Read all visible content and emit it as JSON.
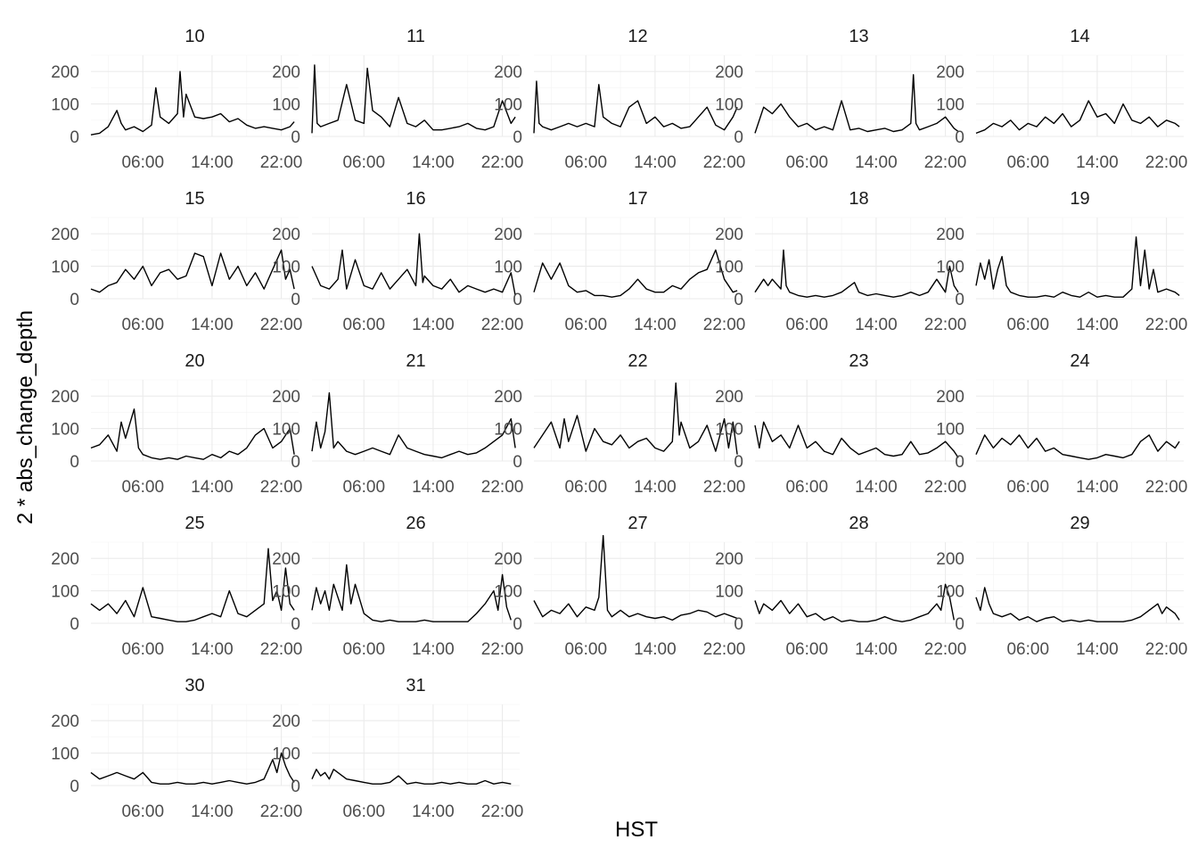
{
  "chart_data": {
    "type": "line",
    "facet_layout": "wrap",
    "ncol": 5,
    "xlabel": "HST",
    "ylabel": "2 * abs_change_depth",
    "x_unit": "hour of day (HST)",
    "xlim": [
      0,
      24
    ],
    "x_ticks": [
      6,
      14,
      22
    ],
    "x_tick_labels": [
      "06:00",
      "14:00",
      "22:00"
    ],
    "ylim": [
      0,
      250
    ],
    "y_ticks": [
      0,
      100,
      200
    ],
    "y_tick_labels": [
      "0",
      "100",
      "200"
    ],
    "grid": true,
    "line_color": "#000000",
    "panels": [
      {
        "label": "10",
        "x": [
          0,
          1,
          2,
          3,
          3.5,
          4,
          5,
          6,
          7,
          7.5,
          8,
          9,
          10,
          10.3,
          10.7,
          11,
          12,
          13,
          14,
          15,
          16,
          17,
          18,
          19,
          20,
          21,
          22,
          23,
          23.5
        ],
        "y": [
          5,
          10,
          30,
          80,
          40,
          20,
          30,
          15,
          35,
          150,
          60,
          40,
          70,
          200,
          60,
          130,
          60,
          55,
          60,
          70,
          45,
          55,
          35,
          25,
          30,
          25,
          20,
          30,
          45
        ]
      },
      {
        "label": "11",
        "x": [
          0,
          0.3,
          0.6,
          1,
          2,
          3,
          4,
          5,
          6,
          6.4,
          7,
          8,
          9,
          10,
          11,
          12,
          13,
          14,
          15,
          16,
          17,
          18,
          19,
          20,
          21,
          22,
          23,
          23.5
        ],
        "y": [
          10,
          220,
          40,
          30,
          40,
          50,
          160,
          50,
          40,
          210,
          80,
          60,
          30,
          120,
          40,
          30,
          50,
          20,
          20,
          25,
          30,
          40,
          25,
          20,
          30,
          110,
          40,
          60
        ]
      },
      {
        "label": "12",
        "x": [
          0,
          0.3,
          0.6,
          1,
          2,
          3,
          4,
          5,
          6,
          7,
          7.5,
          8,
          9,
          10,
          11,
          12,
          13,
          14,
          15,
          16,
          17,
          18,
          19,
          20,
          21,
          22,
          23,
          23.5
        ],
        "y": [
          10,
          170,
          40,
          30,
          20,
          30,
          40,
          30,
          40,
          30,
          160,
          60,
          40,
          30,
          90,
          110,
          40,
          60,
          30,
          40,
          25,
          30,
          60,
          90,
          35,
          20,
          60,
          90
        ]
      },
      {
        "label": "13",
        "x": [
          0,
          1,
          2,
          3,
          4,
          5,
          6,
          7,
          8,
          9,
          10,
          11,
          12,
          13,
          14,
          15,
          16,
          17,
          18,
          18.3,
          18.6,
          19,
          20,
          21,
          22,
          23,
          23.5
        ],
        "y": [
          10,
          90,
          70,
          100,
          60,
          30,
          40,
          20,
          30,
          20,
          110,
          20,
          25,
          15,
          20,
          25,
          15,
          20,
          40,
          190,
          40,
          20,
          30,
          40,
          60,
          25,
          15
        ]
      },
      {
        "label": "14",
        "x": [
          0,
          1,
          2,
          3,
          4,
          5,
          6,
          7,
          8,
          9,
          10,
          11,
          12,
          13,
          14,
          15,
          16,
          17,
          18,
          19,
          20,
          21,
          22,
          23,
          23.5
        ],
        "y": [
          10,
          20,
          40,
          30,
          50,
          20,
          40,
          30,
          60,
          40,
          70,
          30,
          50,
          110,
          60,
          70,
          40,
          100,
          50,
          40,
          60,
          30,
          50,
          40,
          30
        ]
      },
      {
        "label": "15",
        "x": [
          0,
          1,
          2,
          3,
          4,
          5,
          6,
          7,
          8,
          9,
          10,
          11,
          12,
          13,
          14,
          15,
          16,
          17,
          18,
          19,
          20,
          21,
          22,
          22.5,
          23,
          23.5
        ],
        "y": [
          30,
          20,
          40,
          50,
          90,
          60,
          100,
          40,
          80,
          90,
          60,
          70,
          140,
          130,
          40,
          140,
          60,
          100,
          40,
          80,
          30,
          90,
          150,
          60,
          90,
          30
        ]
      },
      {
        "label": "16",
        "x": [
          0,
          1,
          2,
          3,
          3.5,
          4,
          5,
          6,
          7,
          8,
          9,
          10,
          11,
          12,
          12.4,
          12.8,
          13,
          14,
          15,
          16,
          17,
          18,
          19,
          20,
          21,
          22,
          23,
          23.5
        ],
        "y": [
          100,
          40,
          30,
          60,
          150,
          30,
          120,
          40,
          30,
          80,
          30,
          60,
          90,
          40,
          200,
          50,
          70,
          40,
          30,
          60,
          20,
          40,
          30,
          20,
          30,
          20,
          80,
          10
        ]
      },
      {
        "label": "17",
        "x": [
          0,
          1,
          2,
          3,
          4,
          5,
          6,
          7,
          8,
          9,
          10,
          11,
          12,
          13,
          14,
          15,
          16,
          17,
          18,
          19,
          20,
          21,
          22,
          23,
          23.5
        ],
        "y": [
          20,
          110,
          60,
          110,
          40,
          20,
          25,
          10,
          10,
          5,
          10,
          30,
          60,
          30,
          20,
          20,
          40,
          30,
          60,
          80,
          90,
          150,
          60,
          20,
          25
        ]
      },
      {
        "label": "18",
        "x": [
          0,
          1,
          1.5,
          2,
          3,
          3.3,
          3.6,
          4,
          5,
          6,
          7,
          8,
          9,
          10,
          11,
          11.5,
          12,
          13,
          14,
          15,
          16,
          17,
          18,
          19,
          20,
          21,
          22,
          22.5,
          23,
          23.5
        ],
        "y": [
          20,
          60,
          40,
          60,
          30,
          150,
          40,
          20,
          10,
          5,
          10,
          5,
          10,
          20,
          40,
          50,
          20,
          10,
          15,
          10,
          5,
          10,
          20,
          10,
          20,
          60,
          20,
          100,
          40,
          20
        ]
      },
      {
        "label": "19",
        "x": [
          0,
          0.5,
          1,
          1.5,
          2,
          2.5,
          3,
          3.5,
          4,
          5,
          6,
          7,
          8,
          9,
          10,
          11,
          12,
          13,
          14,
          15,
          16,
          17,
          18,
          18.5,
          19,
          19.5,
          20,
          20.5,
          21,
          22,
          23,
          23.5
        ],
        "y": [
          40,
          110,
          60,
          120,
          30,
          90,
          130,
          40,
          20,
          10,
          5,
          5,
          10,
          5,
          20,
          10,
          5,
          20,
          5,
          10,
          5,
          5,
          30,
          190,
          40,
          150,
          30,
          90,
          20,
          30,
          20,
          10
        ]
      },
      {
        "label": "20",
        "x": [
          0,
          1,
          2,
          3,
          3.5,
          4,
          5,
          5.5,
          6,
          7,
          8,
          9,
          10,
          11,
          12,
          13,
          14,
          15,
          16,
          17,
          18,
          19,
          20,
          21,
          22,
          23,
          23.5
        ],
        "y": [
          40,
          50,
          80,
          30,
          120,
          70,
          160,
          40,
          20,
          10,
          5,
          10,
          5,
          15,
          10,
          5,
          20,
          10,
          30,
          20,
          40,
          80,
          100,
          40,
          60,
          100,
          20
        ]
      },
      {
        "label": "21",
        "x": [
          0,
          0.5,
          1,
          1.5,
          2,
          2.5,
          3,
          4,
          5,
          6,
          7,
          8,
          9,
          10,
          11,
          12,
          13,
          14,
          15,
          16,
          17,
          18,
          19,
          20,
          21,
          22,
          23,
          23.5
        ],
        "y": [
          30,
          120,
          40,
          90,
          210,
          40,
          60,
          30,
          20,
          30,
          40,
          30,
          20,
          80,
          40,
          30,
          20,
          15,
          10,
          20,
          30,
          20,
          25,
          40,
          60,
          80,
          130,
          40
        ]
      },
      {
        "label": "22",
        "x": [
          0,
          1,
          2,
          3,
          3.5,
          4,
          5,
          6,
          7,
          8,
          9,
          10,
          11,
          12,
          13,
          14,
          15,
          16,
          16.4,
          16.8,
          17,
          18,
          19,
          20,
          21,
          22,
          22.5,
          23,
          23.5
        ],
        "y": [
          40,
          80,
          120,
          40,
          130,
          60,
          140,
          30,
          100,
          60,
          50,
          80,
          40,
          60,
          70,
          40,
          30,
          60,
          240,
          80,
          120,
          40,
          60,
          110,
          30,
          130,
          40,
          120,
          20
        ]
      },
      {
        "label": "23",
        "x": [
          0,
          0.5,
          1,
          2,
          3,
          4,
          5,
          6,
          7,
          8,
          9,
          10,
          11,
          12,
          13,
          14,
          15,
          16,
          17,
          18,
          19,
          20,
          21,
          22,
          23,
          23.5
        ],
        "y": [
          110,
          40,
          120,
          60,
          80,
          40,
          110,
          40,
          60,
          30,
          20,
          70,
          40,
          20,
          30,
          40,
          20,
          15,
          20,
          60,
          20,
          25,
          40,
          60,
          30,
          10
        ]
      },
      {
        "label": "24",
        "x": [
          0,
          1,
          2,
          3,
          4,
          5,
          6,
          7,
          8,
          9,
          10,
          11,
          12,
          13,
          14,
          15,
          16,
          17,
          18,
          19,
          20,
          21,
          22,
          23,
          23.5
        ],
        "y": [
          20,
          80,
          40,
          70,
          50,
          80,
          40,
          70,
          30,
          40,
          20,
          15,
          10,
          5,
          10,
          20,
          15,
          10,
          20,
          60,
          80,
          30,
          60,
          40,
          60
        ]
      },
      {
        "label": "25",
        "x": [
          0,
          1,
          2,
          3,
          4,
          5,
          6,
          7,
          8,
          9,
          10,
          11,
          12,
          13,
          14,
          15,
          16,
          17,
          18,
          19,
          20,
          20.5,
          21,
          21.5,
          22,
          22.5,
          23,
          23.5
        ],
        "y": [
          60,
          40,
          60,
          30,
          70,
          20,
          110,
          20,
          15,
          10,
          5,
          5,
          10,
          20,
          30,
          20,
          100,
          30,
          20,
          40,
          60,
          230,
          70,
          100,
          40,
          170,
          60,
          40
        ]
      },
      {
        "label": "26",
        "x": [
          0,
          0.5,
          1,
          1.5,
          2,
          2.5,
          3,
          3.5,
          4,
          4.5,
          5,
          6,
          7,
          8,
          9,
          10,
          11,
          12,
          13,
          14,
          15,
          16,
          17,
          18,
          19,
          20,
          21,
          21.5,
          22,
          22.5,
          23
        ],
        "y": [
          40,
          110,
          60,
          100,
          40,
          120,
          80,
          40,
          180,
          60,
          120,
          30,
          10,
          5,
          10,
          5,
          5,
          5,
          10,
          5,
          5,
          5,
          5,
          5,
          30,
          60,
          100,
          40,
          150,
          50,
          10
        ]
      },
      {
        "label": "27",
        "x": [
          0,
          1,
          2,
          3,
          4,
          5,
          6,
          7,
          7.5,
          8,
          8.5,
          9,
          10,
          11,
          12,
          13,
          14,
          15,
          16,
          17,
          18,
          19,
          20,
          21,
          22,
          23,
          23.5
        ],
        "y": [
          70,
          20,
          40,
          30,
          60,
          20,
          50,
          40,
          80,
          270,
          40,
          20,
          40,
          20,
          30,
          20,
          15,
          20,
          10,
          25,
          30,
          40,
          35,
          20,
          30,
          20,
          15
        ]
      },
      {
        "label": "28",
        "x": [
          0,
          0.5,
          1,
          2,
          3,
          4,
          5,
          6,
          7,
          8,
          9,
          10,
          11,
          12,
          13,
          14,
          15,
          16,
          17,
          18,
          19,
          20,
          21,
          21.5,
          22,
          22.5,
          23
        ],
        "y": [
          70,
          30,
          60,
          40,
          70,
          30,
          60,
          20,
          30,
          10,
          20,
          5,
          10,
          5,
          5,
          10,
          20,
          10,
          5,
          10,
          20,
          30,
          60,
          40,
          120,
          80,
          10
        ]
      },
      {
        "label": "29",
        "x": [
          0,
          0.5,
          1,
          1.5,
          2,
          3,
          4,
          5,
          6,
          7,
          8,
          9,
          10,
          11,
          12,
          13,
          14,
          15,
          16,
          17,
          18,
          19,
          20,
          21,
          21.5,
          22,
          23,
          23.5
        ],
        "y": [
          80,
          40,
          110,
          60,
          30,
          20,
          30,
          10,
          20,
          5,
          15,
          20,
          5,
          10,
          5,
          10,
          5,
          5,
          5,
          5,
          10,
          20,
          40,
          60,
          30,
          50,
          30,
          10
        ]
      },
      {
        "label": "30",
        "x": [
          0,
          1,
          2,
          3,
          4,
          5,
          6,
          7,
          8,
          9,
          10,
          11,
          12,
          13,
          14,
          15,
          16,
          17,
          18,
          19,
          20,
          21,
          21.5,
          22,
          22.5,
          23,
          23.5
        ],
        "y": [
          40,
          20,
          30,
          40,
          30,
          20,
          40,
          10,
          5,
          5,
          10,
          5,
          5,
          10,
          5,
          10,
          15,
          10,
          5,
          10,
          20,
          80,
          40,
          100,
          60,
          30,
          10
        ]
      },
      {
        "label": "31",
        "x": [
          0,
          0.5,
          1,
          1.5,
          2,
          2.5,
          3,
          4,
          5,
          6,
          7,
          8,
          9,
          10,
          11,
          12,
          13,
          14,
          15,
          16,
          17,
          18,
          19,
          20,
          21,
          22,
          23
        ],
        "y": [
          20,
          50,
          30,
          40,
          20,
          50,
          40,
          20,
          15,
          10,
          5,
          5,
          10,
          30,
          5,
          10,
          5,
          5,
          10,
          5,
          10,
          5,
          5,
          15,
          5,
          10,
          5
        ]
      }
    ]
  }
}
